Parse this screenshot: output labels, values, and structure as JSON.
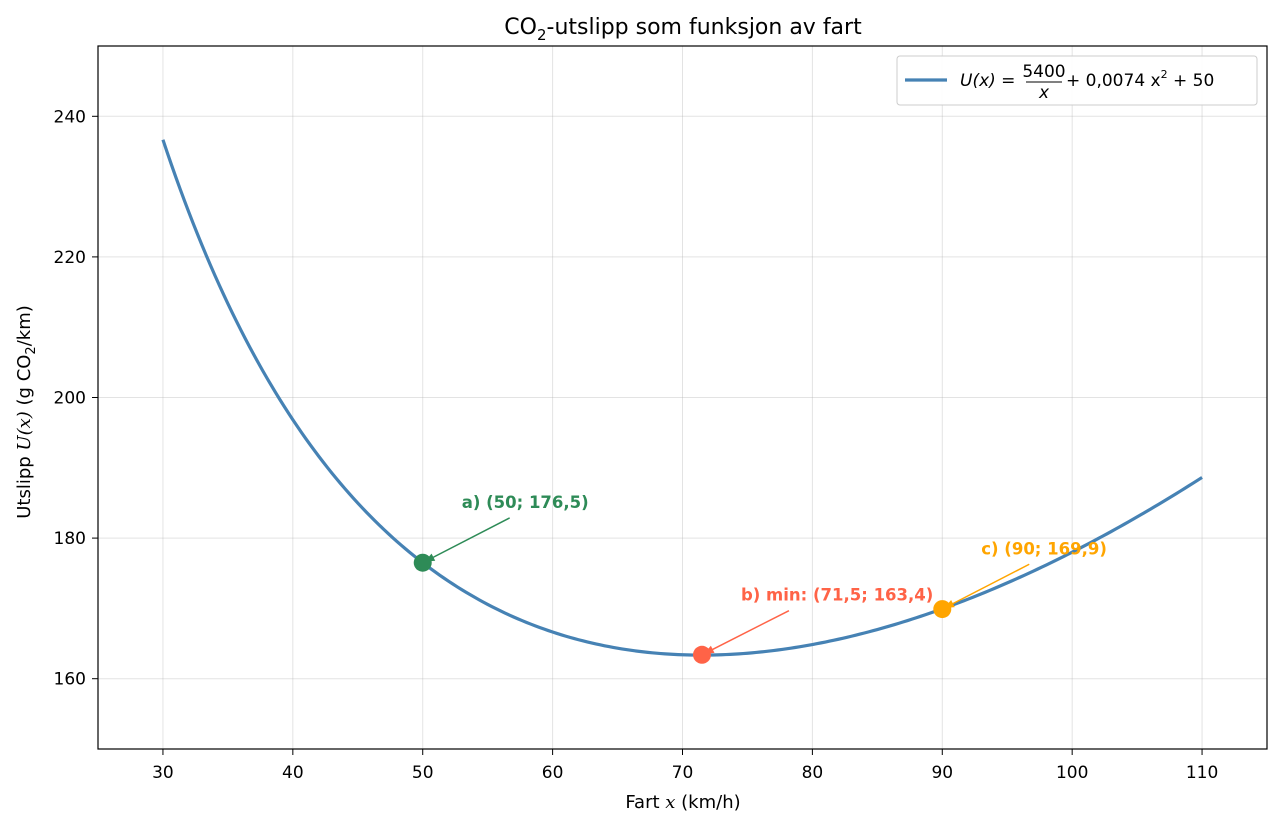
{
  "chart_data": {
    "type": "line",
    "title": {
      "pre": "CO",
      "sub": "2",
      "post": "-utslipp som funksjon av fart"
    },
    "xlabel": {
      "pre": "Fart ",
      "var": "x",
      "post": " (km/h)"
    },
    "ylabel": {
      "pre": "Utslipp ",
      "var": "U(x)",
      "mid": " (g CO",
      "sub": "2",
      "post": "/km)"
    },
    "xlim": [
      25,
      115
    ],
    "ylim": [
      150,
      250
    ],
    "xticks": [
      30,
      40,
      50,
      60,
      70,
      80,
      90,
      100,
      110
    ],
    "yticks": [
      160,
      180,
      200,
      220,
      240
    ],
    "grid": true,
    "legend_placement": "top-right",
    "series": [
      {
        "name": {
          "lhs": "U(x) =",
          "num": "5400",
          "den": "x",
          "rhs": "+ 0,0074 x",
          "sup": "2",
          "tail": " + 50"
        },
        "color": "#4682b4",
        "domain": [
          30,
          110
        ],
        "coefficients": {
          "a": 5400,
          "b": 0.0074,
          "c": 50
        }
      }
    ],
    "points": [
      {
        "label": "a) (50; 176,5)",
        "x": 50,
        "y": 176.5,
        "color": "#2e8b57",
        "label_x": 53,
        "label_y": 184.3
      },
      {
        "label": "b) min: (71,5; 163,4)",
        "x": 71.5,
        "y": 163.4,
        "color": "#ff6347",
        "label_x": 74.5,
        "label_y": 171.1
      },
      {
        "label": "c) (90; 169,9)",
        "x": 90,
        "y": 169.9,
        "color": "#ffa500",
        "label_x": 93,
        "label_y": 177.7
      }
    ]
  }
}
